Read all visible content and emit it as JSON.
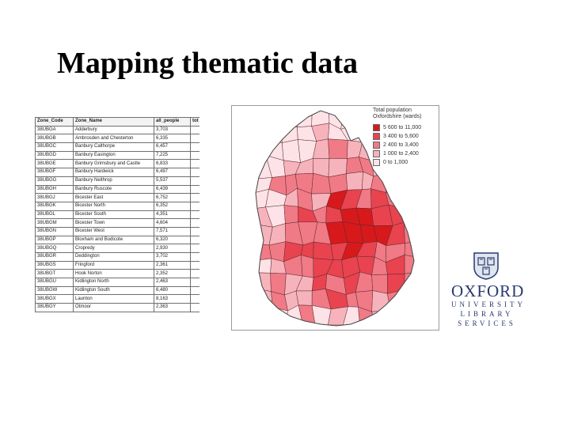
{
  "title": "Mapping thematic data",
  "table": {
    "headers": [
      "Zone_Code",
      "Zone_Name",
      "all_people",
      "tot"
    ],
    "rows": [
      [
        "38UBGA",
        "Adderbury",
        "3,703",
        ""
      ],
      [
        "38UBGB",
        "Ambrosden and Chesterton",
        "6,335",
        ""
      ],
      [
        "38UBGC",
        "Banbury Calthorpe",
        "6,457",
        ""
      ],
      [
        "38UBGD",
        "Banbury Easington",
        "7,225",
        ""
      ],
      [
        "38UBGE",
        "Banbury Grimsbury and Castle",
        "6,833",
        ""
      ],
      [
        "38UBGF",
        "Banbury Hardwick",
        "6,497",
        ""
      ],
      [
        "38UBGG",
        "Banbury Neithrop",
        "5,537",
        ""
      ],
      [
        "38UBGH",
        "Banbury Ruscote",
        "6,439",
        ""
      ],
      [
        "38UBGJ",
        "Bicester East",
        "6,752",
        ""
      ],
      [
        "38UBGK",
        "Bicester North",
        "6,352",
        ""
      ],
      [
        "38UBGL",
        "Bicester South",
        "4,351",
        ""
      ],
      [
        "38UBGM",
        "Bicester Town",
        "4,604",
        ""
      ],
      [
        "38UBGN",
        "Bicester West",
        "7,571",
        ""
      ],
      [
        "38UBGP",
        "Bloxham and Bodicote",
        "6,320",
        ""
      ],
      [
        "38UBGQ",
        "Cropredy",
        "2,930",
        ""
      ],
      [
        "38UBGR",
        "Deddington",
        "3,702",
        ""
      ],
      [
        "38UBGS",
        "Fringford",
        "2,361",
        ""
      ],
      [
        "38UBGT",
        "Hook Norton",
        "2,352",
        ""
      ],
      [
        "38UBGU",
        "Kidlington North",
        "2,463",
        ""
      ],
      [
        "38UBGW",
        "Kidlington South",
        "6,480",
        ""
      ],
      [
        "38UBGX",
        "Launton",
        "8,163",
        ""
      ],
      [
        "38UBGY",
        "Otmoor",
        "2,363",
        ""
      ]
    ]
  },
  "legend": {
    "title": "Total population",
    "subtitle": "Oxfordshire (wards)",
    "classes": [
      {
        "label": "5 600 to 11,000",
        "color": "#d7191c"
      },
      {
        "label": "3 400 to  5,600",
        "color": "#e8434f"
      },
      {
        "label": "2 400 to  3,400",
        "color": "#f07a86"
      },
      {
        "label": "1 000 to  2,400",
        "color": "#f7b3bc"
      },
      {
        "label": "0 to  1,000",
        "color": "#fde3e7"
      }
    ]
  },
  "map": {
    "region": "Oxfordshire wards choropleth",
    "colors": [
      "#d7191c",
      "#e8434f",
      "#f07a86",
      "#f7b3bc",
      "#fde3e7"
    ]
  },
  "logo": {
    "line1": "OXFORD",
    "line2": "UNIVERSITY",
    "line3": "LIBRARY",
    "line4": "SERVICES"
  }
}
